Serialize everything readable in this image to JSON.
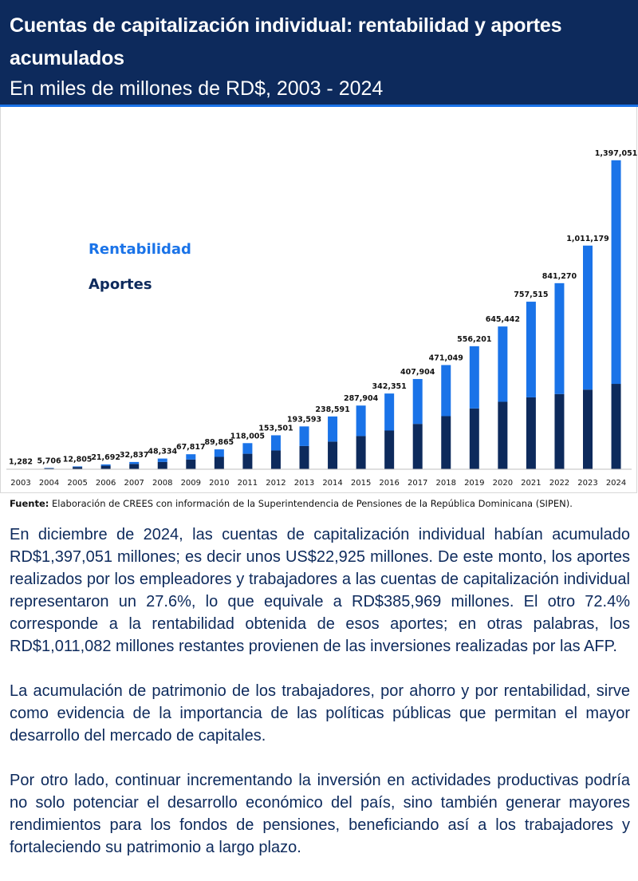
{
  "header": {
    "title": "Cuentas de capitalización individual: rentabilidad y aportes acumulados",
    "subtitle": "En miles de millones de RD$, 2003 - 2024"
  },
  "colors": {
    "header_bg": "#0d2a5c",
    "rentabilidad": "#1a73e8",
    "aportes": "#0d2a5c"
  },
  "chart_data": {
    "type": "bar",
    "stacked": true,
    "title": "",
    "xlabel": "",
    "ylabel": "",
    "categories": [
      "2003",
      "2004",
      "2005",
      "2006",
      "2007",
      "2008",
      "2009",
      "2010",
      "2011",
      "2012",
      "2013",
      "2014",
      "2015",
      "2016",
      "2017",
      "2018",
      "2019",
      "2020",
      "2021",
      "2022",
      "2023",
      "2024"
    ],
    "totals": [
      1282,
      5706,
      12805,
      21692,
      32837,
      48334,
      67817,
      89865,
      118005,
      153501,
      193593,
      238591,
      287904,
      342351,
      407904,
      471049,
      556201,
      645442,
      757515,
      841270,
      1011179,
      1397051
    ],
    "total_labels": [
      "1,282",
      "5,706",
      "12,805",
      "21,692",
      "32,837",
      "48,334",
      "67,817",
      "89,865",
      "118,005",
      "153,501",
      "193,593",
      "238,591",
      "287,904",
      "342,351",
      "407,904",
      "471,049",
      "556,201",
      "645,442",
      "757,515",
      "841,270",
      "1,011,179",
      "1,397,051"
    ],
    "series": [
      {
        "name": "Aportes",
        "values": [
          1200,
          5000,
          10000,
          16000,
          24000,
          33000,
          44000,
          56000,
          70000,
          85000,
          105000,
          125000,
          150000,
          175000,
          205000,
          240000,
          275000,
          305000,
          325000,
          340000,
          360000,
          385969
        ]
      },
      {
        "name": "Rentabilidad",
        "values": [
          82,
          706,
          2805,
          5692,
          8837,
          15334,
          23817,
          33865,
          48005,
          68501,
          88593,
          113591,
          137904,
          167351,
          202904,
          231049,
          281201,
          340442,
          432515,
          501270,
          651179,
          1011082
        ]
      }
    ],
    "ylim": [
      0,
      1400000
    ],
    "grid": false,
    "legend": [
      {
        "label": "Rentabilidad",
        "color": "#1a73e8"
      },
      {
        "label": "Aportes",
        "color": "#0d2a5c"
      }
    ],
    "legend_position": "top-left"
  },
  "source": {
    "label": "Fuente:",
    "text": "Elaboración de CREES con información de la Superintendencia de Pensiones de la República Dominicana (SIPEN)."
  },
  "paragraphs": [
    "En diciembre de 2024, las cuentas de capitalización individual habían acumulado RD$1,397,051 millones; es decir unos US$22,925 millones. De este monto, los aportes realizados por los empleadores y trabajadores a las cuentas de capitalización individual representaron un 27.6%, lo que equivale a RD$385,969 millones. El otro 72.4% corresponde a la rentabilidad obtenida de esos aportes; en otras palabras, los RD$1,011,082 millones restantes provienen de las inversiones realizadas por las AFP.",
    "La acumulación de patrimonio de los trabajadores, por ahorro y por rentabilidad, sirve como evidencia de la importancia de las políticas públicas que permitan el mayor desarrollo del mercado de capitales.",
    "Por otro lado, continuar incrementando la inversión en actividades productivas podría no solo potenciar el desarrollo económico del país, sino también generar mayores rendimientos para los fondos de pensiones, beneficiando así a los trabajadores y fortaleciendo su patrimonio a largo plazo."
  ]
}
